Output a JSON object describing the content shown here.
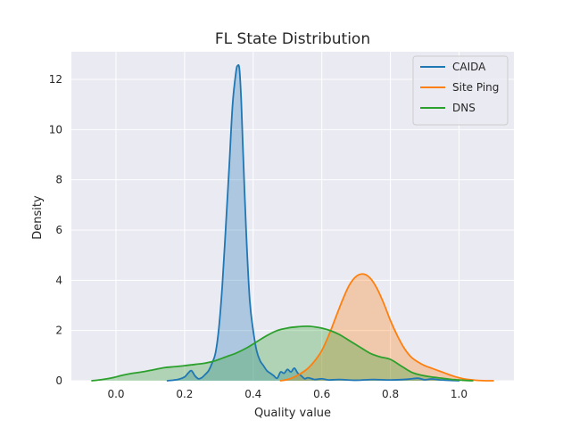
{
  "chart_data": {
    "type": "area",
    "title": "FL State Distribution",
    "xlabel": "Quality value",
    "ylabel": "Density",
    "xlim": [
      -0.13,
      1.16
    ],
    "ylim": [
      0,
      13.1
    ],
    "xticks": [
      0.0,
      0.2,
      0.4,
      0.6,
      0.8,
      1.0
    ],
    "xtick_labels": [
      "0.0",
      "0.2",
      "0.4",
      "0.6",
      "0.8",
      "1.0"
    ],
    "yticks": [
      0,
      2,
      4,
      6,
      8,
      10,
      12
    ],
    "ytick_labels": [
      "0",
      "2",
      "4",
      "6",
      "8",
      "10",
      "12"
    ],
    "grid": true,
    "legend_position": "upper-right",
    "series": [
      {
        "name": "CAIDA",
        "color": "#1f77b4",
        "x": [
          0.15,
          0.18,
          0.2,
          0.21,
          0.22,
          0.23,
          0.24,
          0.25,
          0.26,
          0.27,
          0.28,
          0.29,
          0.3,
          0.31,
          0.32,
          0.33,
          0.34,
          0.35,
          0.355,
          0.36,
          0.365,
          0.37,
          0.38,
          0.39,
          0.4,
          0.41,
          0.42,
          0.43,
          0.44,
          0.45,
          0.46,
          0.47,
          0.48,
          0.49,
          0.5,
          0.51,
          0.52,
          0.53,
          0.54,
          0.55,
          0.56,
          0.58,
          0.6,
          0.62,
          0.65,
          0.7,
          0.75,
          0.8,
          0.85,
          0.88,
          0.9,
          0.92,
          0.95,
          0.98,
          1.0
        ],
        "y": [
          0.0,
          0.05,
          0.15,
          0.3,
          0.4,
          0.2,
          0.08,
          0.12,
          0.25,
          0.4,
          0.7,
          1.1,
          2.1,
          3.8,
          6.1,
          8.5,
          11.0,
          12.3,
          12.55,
          12.4,
          11.2,
          9.3,
          5.8,
          3.2,
          2.0,
          1.2,
          0.8,
          0.6,
          0.4,
          0.3,
          0.2,
          0.1,
          0.35,
          0.3,
          0.45,
          0.35,
          0.5,
          0.3,
          0.2,
          0.08,
          0.12,
          0.05,
          0.08,
          0.03,
          0.05,
          0.02,
          0.05,
          0.03,
          0.06,
          0.1,
          0.04,
          0.07,
          0.03,
          0.01,
          0.0
        ]
      },
      {
        "name": "Site Ping",
        "color": "#ff7f0e",
        "x": [
          0.48,
          0.5,
          0.52,
          0.54,
          0.56,
          0.58,
          0.6,
          0.62,
          0.64,
          0.66,
          0.68,
          0.7,
          0.72,
          0.74,
          0.76,
          0.78,
          0.8,
          0.82,
          0.84,
          0.86,
          0.88,
          0.9,
          0.92,
          0.94,
          0.96,
          0.98,
          1.0,
          1.02,
          1.04,
          1.06,
          1.08,
          1.1
        ],
        "y": [
          0.0,
          0.05,
          0.15,
          0.3,
          0.5,
          0.8,
          1.2,
          1.8,
          2.5,
          3.2,
          3.8,
          4.15,
          4.25,
          4.1,
          3.7,
          3.1,
          2.4,
          1.8,
          1.3,
          0.95,
          0.75,
          0.6,
          0.5,
          0.4,
          0.3,
          0.2,
          0.12,
          0.06,
          0.03,
          0.01,
          0.0,
          0.0
        ]
      },
      {
        "name": "DNS",
        "color": "#2ca02c",
        "x": [
          -0.07,
          -0.04,
          -0.01,
          0.02,
          0.05,
          0.08,
          0.11,
          0.14,
          0.17,
          0.2,
          0.23,
          0.26,
          0.29,
          0.32,
          0.35,
          0.38,
          0.41,
          0.44,
          0.47,
          0.5,
          0.53,
          0.56,
          0.59,
          0.62,
          0.65,
          0.68,
          0.71,
          0.74,
          0.77,
          0.8,
          0.83,
          0.86,
          0.89,
          0.92,
          0.95,
          0.98,
          1.01,
          1.04
        ],
        "y": [
          0.0,
          0.05,
          0.12,
          0.22,
          0.3,
          0.36,
          0.44,
          0.52,
          0.56,
          0.6,
          0.65,
          0.7,
          0.8,
          0.95,
          1.1,
          1.3,
          1.55,
          1.8,
          2.0,
          2.1,
          2.15,
          2.17,
          2.12,
          2.02,
          1.85,
          1.6,
          1.35,
          1.1,
          0.95,
          0.85,
          0.6,
          0.35,
          0.22,
          0.15,
          0.1,
          0.05,
          0.02,
          0.0
        ]
      }
    ]
  }
}
